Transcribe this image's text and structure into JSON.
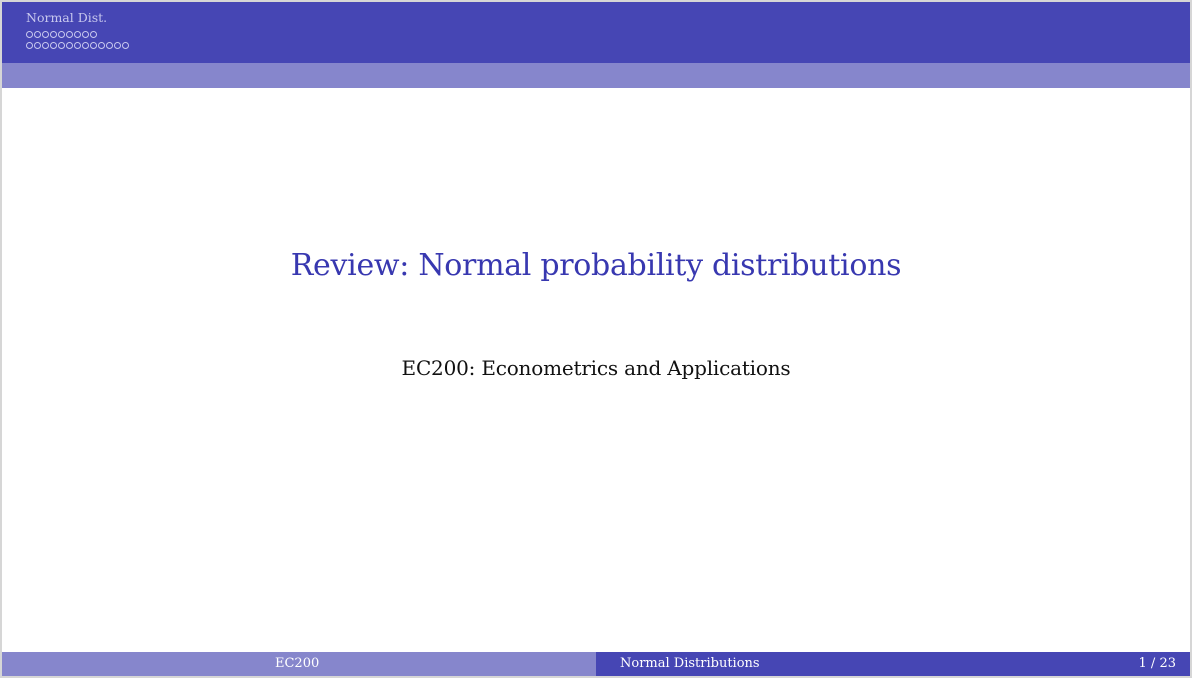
{
  "header": {
    "section": "Normal Dist.",
    "subsection_dots": [
      9,
      13
    ]
  },
  "main": {
    "title": "Review: Normal probability distributions",
    "subtitle": "EC200: Econometrics and Applications"
  },
  "footer": {
    "left": "EC200",
    "center": "Normal Distributions",
    "page": "1 / 23"
  },
  "colors": {
    "header_dark": "#4646b4",
    "header_light": "#8686cc",
    "title": "#3838b0"
  }
}
